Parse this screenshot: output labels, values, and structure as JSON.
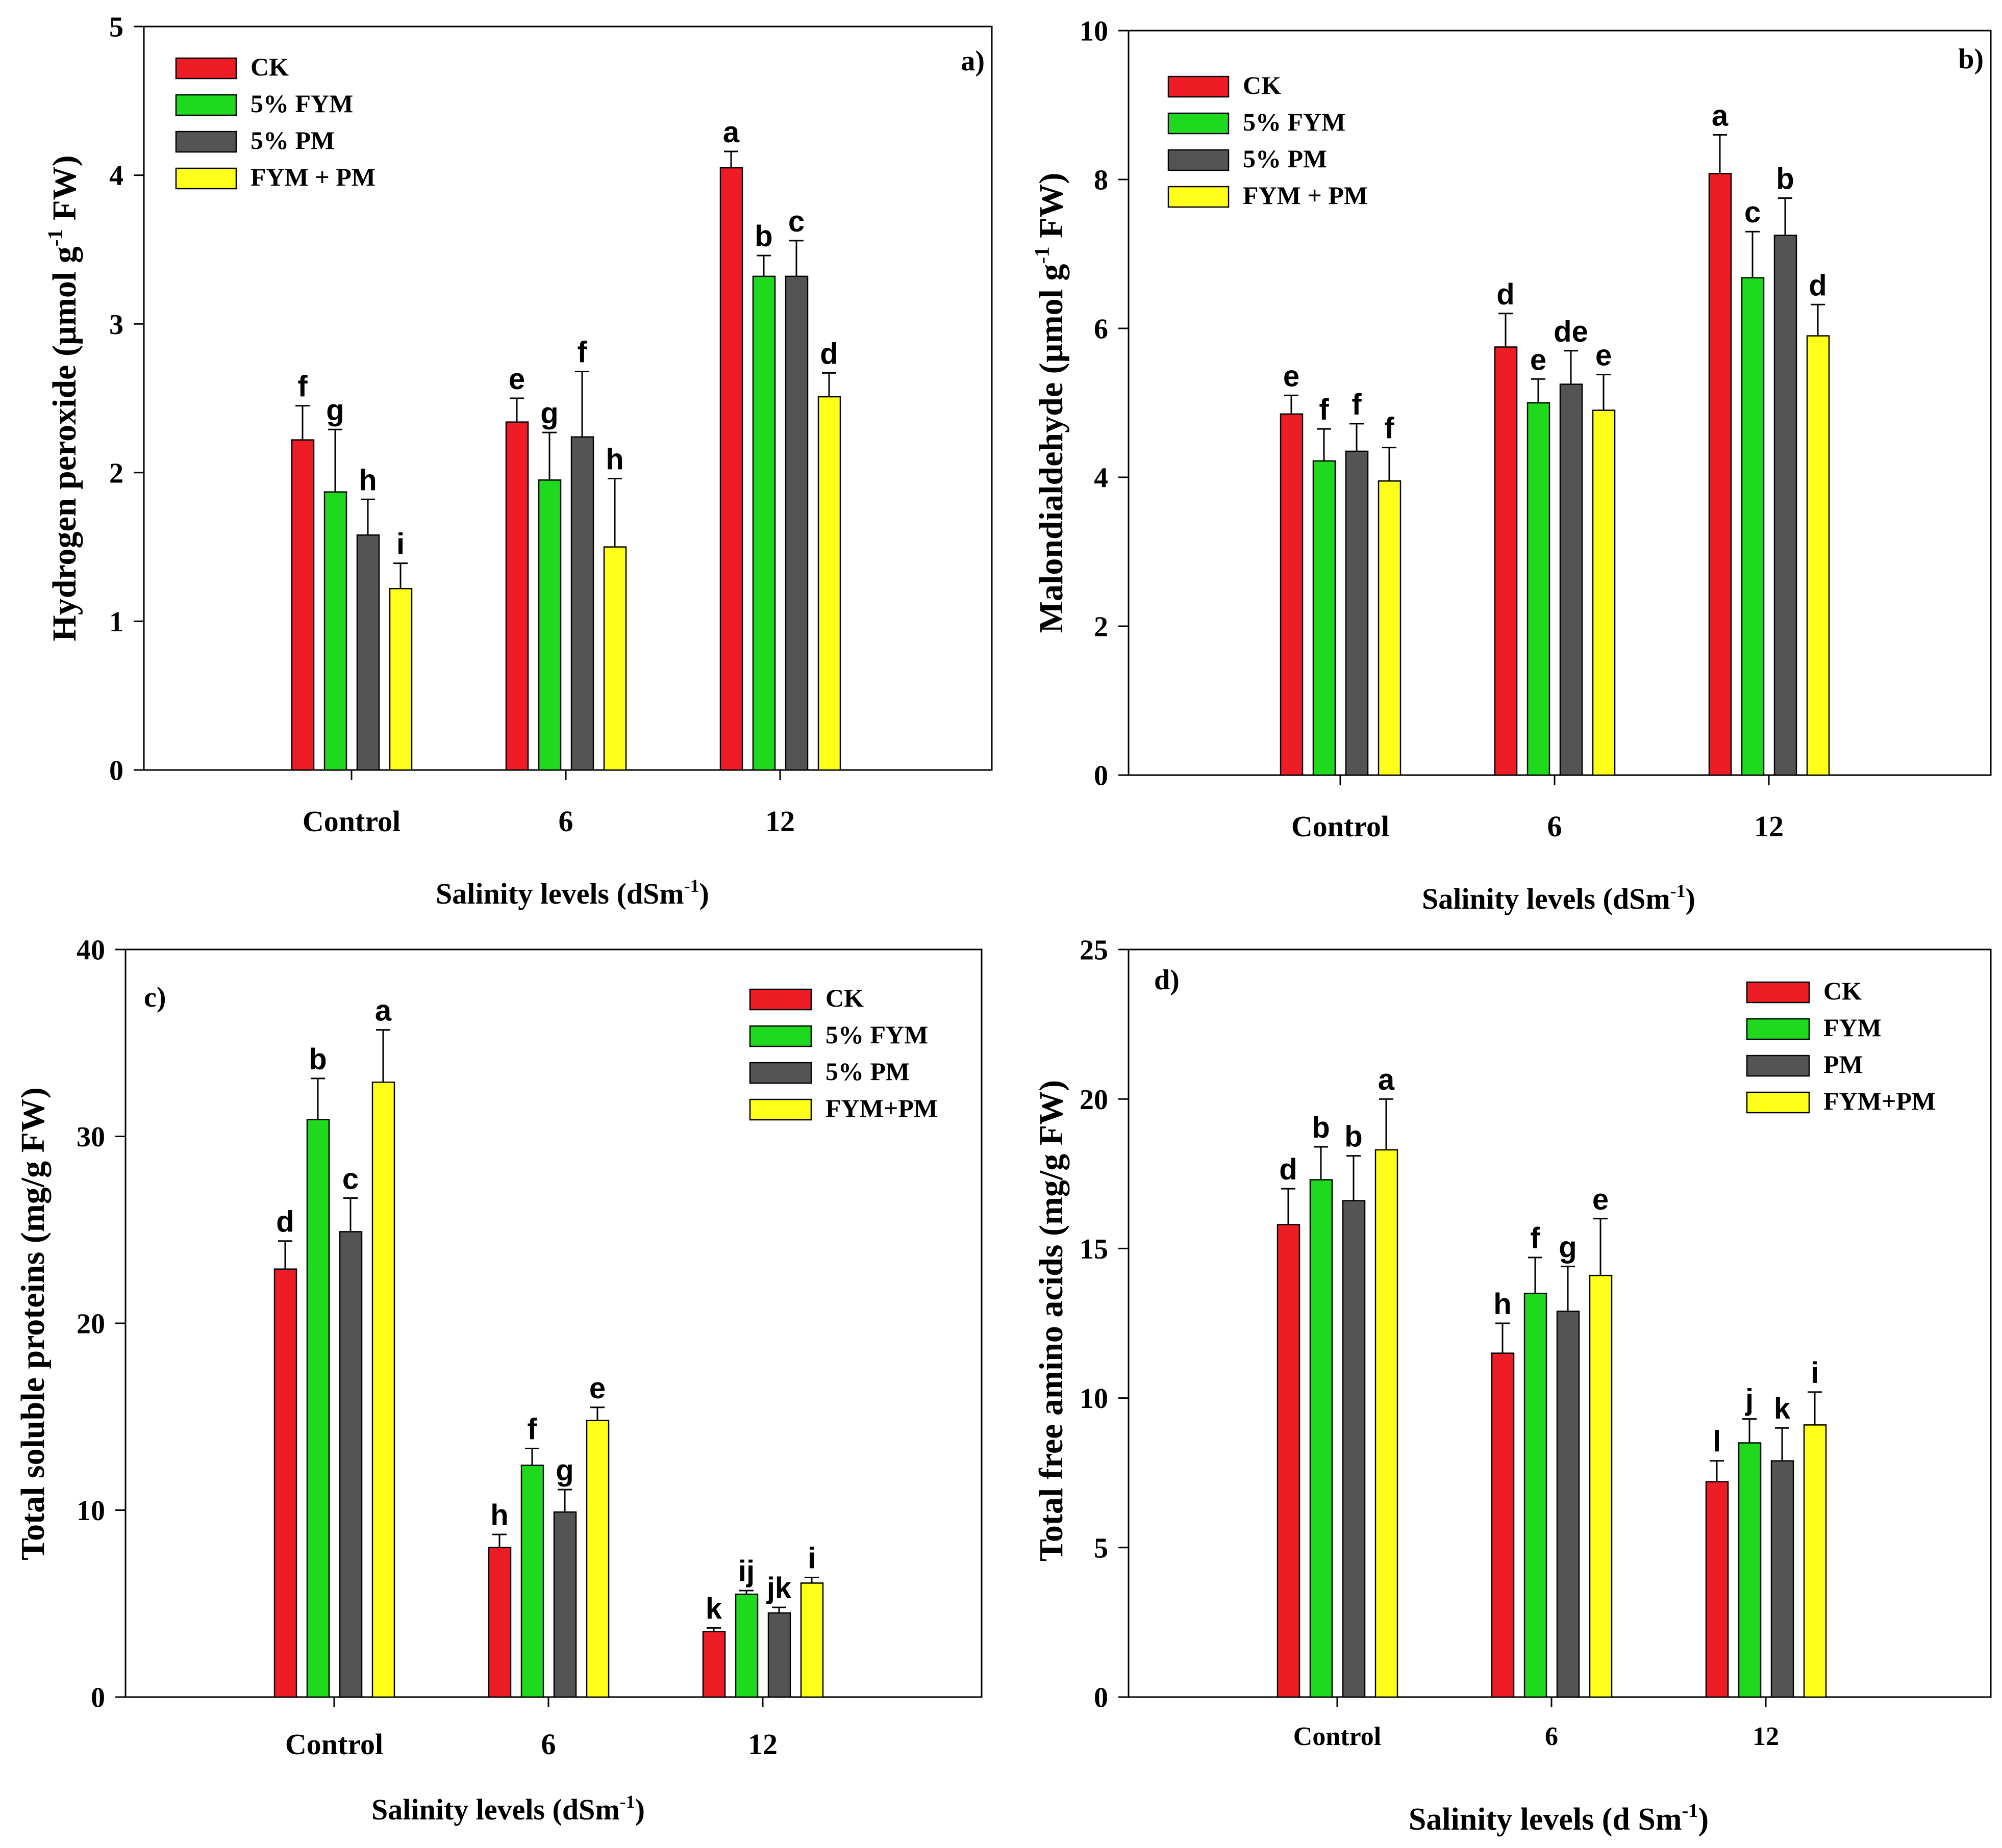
{
  "chart_data": [
    {
      "type": "bar",
      "panel_label": "a)",
      "title": "",
      "ylabel": "Hydrogen peroxide (µmol g",
      "ylabel_superscript": "-1",
      "ylabel_tail": " FW)",
      "xlabel": "Salinity levels (dSm",
      "xlabel_superscript": "-1",
      "xlabel_tail": ")",
      "ylim": [
        0,
        5
      ],
      "yticks": [
        "0",
        "1",
        "2",
        "3",
        "4",
        "5"
      ],
      "categories": [
        "Control",
        "6",
        "12"
      ],
      "grid": false,
      "legend_position": "top-left",
      "series": [
        {
          "name": "CK",
          "color": "#ee1c24",
          "values": [
            2.22,
            2.34,
            4.05
          ],
          "errors": [
            0.23,
            0.16,
            0.11
          ],
          "letters": [
            "f",
            "e",
            "a"
          ]
        },
        {
          "name": "5% FYM",
          "color": "#1fd91f",
          "values": [
            1.87,
            1.95,
            3.32
          ],
          "errors": [
            0.42,
            0.32,
            0.14
          ],
          "letters": [
            "g",
            "g",
            "b"
          ]
        },
        {
          "name": "5% PM",
          "color": "#545454",
          "values": [
            1.58,
            2.24,
            3.32
          ],
          "errors": [
            0.24,
            0.44,
            0.24
          ],
          "letters": [
            "h",
            "f",
            "c"
          ]
        },
        {
          "name": "FYM + PM",
          "color": "#ffff1a",
          "values": [
            1.22,
            1.5,
            2.51
          ],
          "errors": [
            0.17,
            0.46,
            0.16
          ],
          "letters": [
            "i",
            "h",
            "d"
          ]
        }
      ]
    },
    {
      "type": "bar",
      "panel_label": "b)",
      "title": "",
      "ylabel": "Malondialdehyde (µmol g",
      "ylabel_superscript": "-1",
      "ylabel_tail": " FW)",
      "xlabel": "Salinity levels (dSm",
      "xlabel_superscript": "-1",
      "xlabel_tail": ")",
      "ylim": [
        0,
        10
      ],
      "yticks": [
        "0",
        "2",
        "4",
        "6",
        "8",
        "10"
      ],
      "categories": [
        "Control",
        "6",
        "12"
      ],
      "grid": false,
      "legend_position": "top-left",
      "series": [
        {
          "name": "CK",
          "color": "#ee1c24",
          "values": [
            4.85,
            5.75,
            8.08
          ],
          "errors": [
            0.25,
            0.45,
            0.52
          ],
          "letters": [
            "e",
            "d",
            "a"
          ]
        },
        {
          "name": "5% FYM",
          "color": "#1fd91f",
          "values": [
            4.22,
            5.0,
            6.68
          ],
          "errors": [
            0.43,
            0.32,
            0.62
          ],
          "letters": [
            "f",
            "e",
            "c"
          ]
        },
        {
          "name": "5% PM",
          "color": "#545454",
          "values": [
            4.35,
            5.25,
            7.25
          ],
          "errors": [
            0.37,
            0.45,
            0.5
          ],
          "letters": [
            "f",
            "de",
            "b"
          ]
        },
        {
          "name": "FYM + PM",
          "color": "#ffff1a",
          "values": [
            3.95,
            4.9,
            5.9
          ],
          "errors": [
            0.45,
            0.48,
            0.42
          ],
          "letters": [
            "f",
            "e",
            "d"
          ]
        }
      ]
    },
    {
      "type": "bar",
      "panel_label": "c)",
      "title": "",
      "ylabel": "Total soluble proteins (mg/g FW)",
      "ylabel_superscript": "",
      "ylabel_tail": "",
      "xlabel": "Salinity levels (dSm",
      "xlabel_superscript": "-1",
      "xlabel_tail": ")",
      "ylim": [
        0,
        40
      ],
      "yticks": [
        "0",
        "10",
        "20",
        "30",
        "40"
      ],
      "categories": [
        "Control",
        "6",
        "12"
      ],
      "grid": false,
      "legend_position": "top-right",
      "series": [
        {
          "name": "CK",
          "color": "#ee1c24",
          "values": [
            22.9,
            8.0,
            3.5
          ],
          "errors": [
            1.5,
            0.7,
            0.2
          ],
          "letters": [
            "d",
            "h",
            "k"
          ]
        },
        {
          "name": "5% FYM",
          "color": "#1fd91f",
          "values": [
            30.9,
            12.4,
            5.5
          ],
          "errors": [
            2.2,
            0.9,
            0.2
          ],
          "letters": [
            "b",
            "f",
            "ij"
          ]
        },
        {
          "name": "5% PM",
          "color": "#545454",
          "values": [
            24.9,
            9.9,
            4.5
          ],
          "errors": [
            1.8,
            1.2,
            0.3
          ],
          "letters": [
            "c",
            "g",
            "jk"
          ]
        },
        {
          "name": "FYM+PM",
          "color": "#ffff1a",
          "values": [
            32.9,
            14.8,
            6.1
          ],
          "errors": [
            2.8,
            0.7,
            0.3
          ],
          "letters": [
            "a",
            "e",
            "i"
          ]
        }
      ]
    },
    {
      "type": "bar",
      "panel_label": "d)",
      "title": "",
      "ylabel": "Total free amino acids (mg/g FW)",
      "ylabel_superscript": "",
      "ylabel_tail": "",
      "xlabel": "Salinity levels (d Sm",
      "xlabel_superscript": "-1",
      "xlabel_tail": ")",
      "ylim": [
        0,
        25
      ],
      "yticks": [
        "0",
        "5",
        "10",
        "15",
        "20",
        "25"
      ],
      "categories": [
        "Control",
        "6",
        "12"
      ],
      "grid": false,
      "legend_position": "top-right",
      "series": [
        {
          "name": "CK",
          "color": "#ee1c24",
          "values": [
            15.8,
            11.5,
            7.2
          ],
          "errors": [
            1.2,
            1.0,
            0.7
          ],
          "letters": [
            "d",
            "h",
            "l"
          ]
        },
        {
          "name": "FYM",
          "color": "#1fd91f",
          "values": [
            17.3,
            13.5,
            8.5
          ],
          "errors": [
            1.1,
            1.2,
            0.8
          ],
          "letters": [
            "b",
            "f",
            "j"
          ]
        },
        {
          "name": "PM",
          "color": "#545454",
          "values": [
            16.6,
            12.9,
            7.9
          ],
          "errors": [
            1.5,
            1.5,
            1.1
          ],
          "letters": [
            "b",
            "g",
            "k"
          ]
        },
        {
          "name": "FYM+PM",
          "color": "#ffff1a",
          "values": [
            18.3,
            14.1,
            9.1
          ],
          "errors": [
            1.7,
            1.9,
            1.1
          ],
          "letters": [
            "a",
            "e",
            "i"
          ]
        }
      ]
    }
  ]
}
